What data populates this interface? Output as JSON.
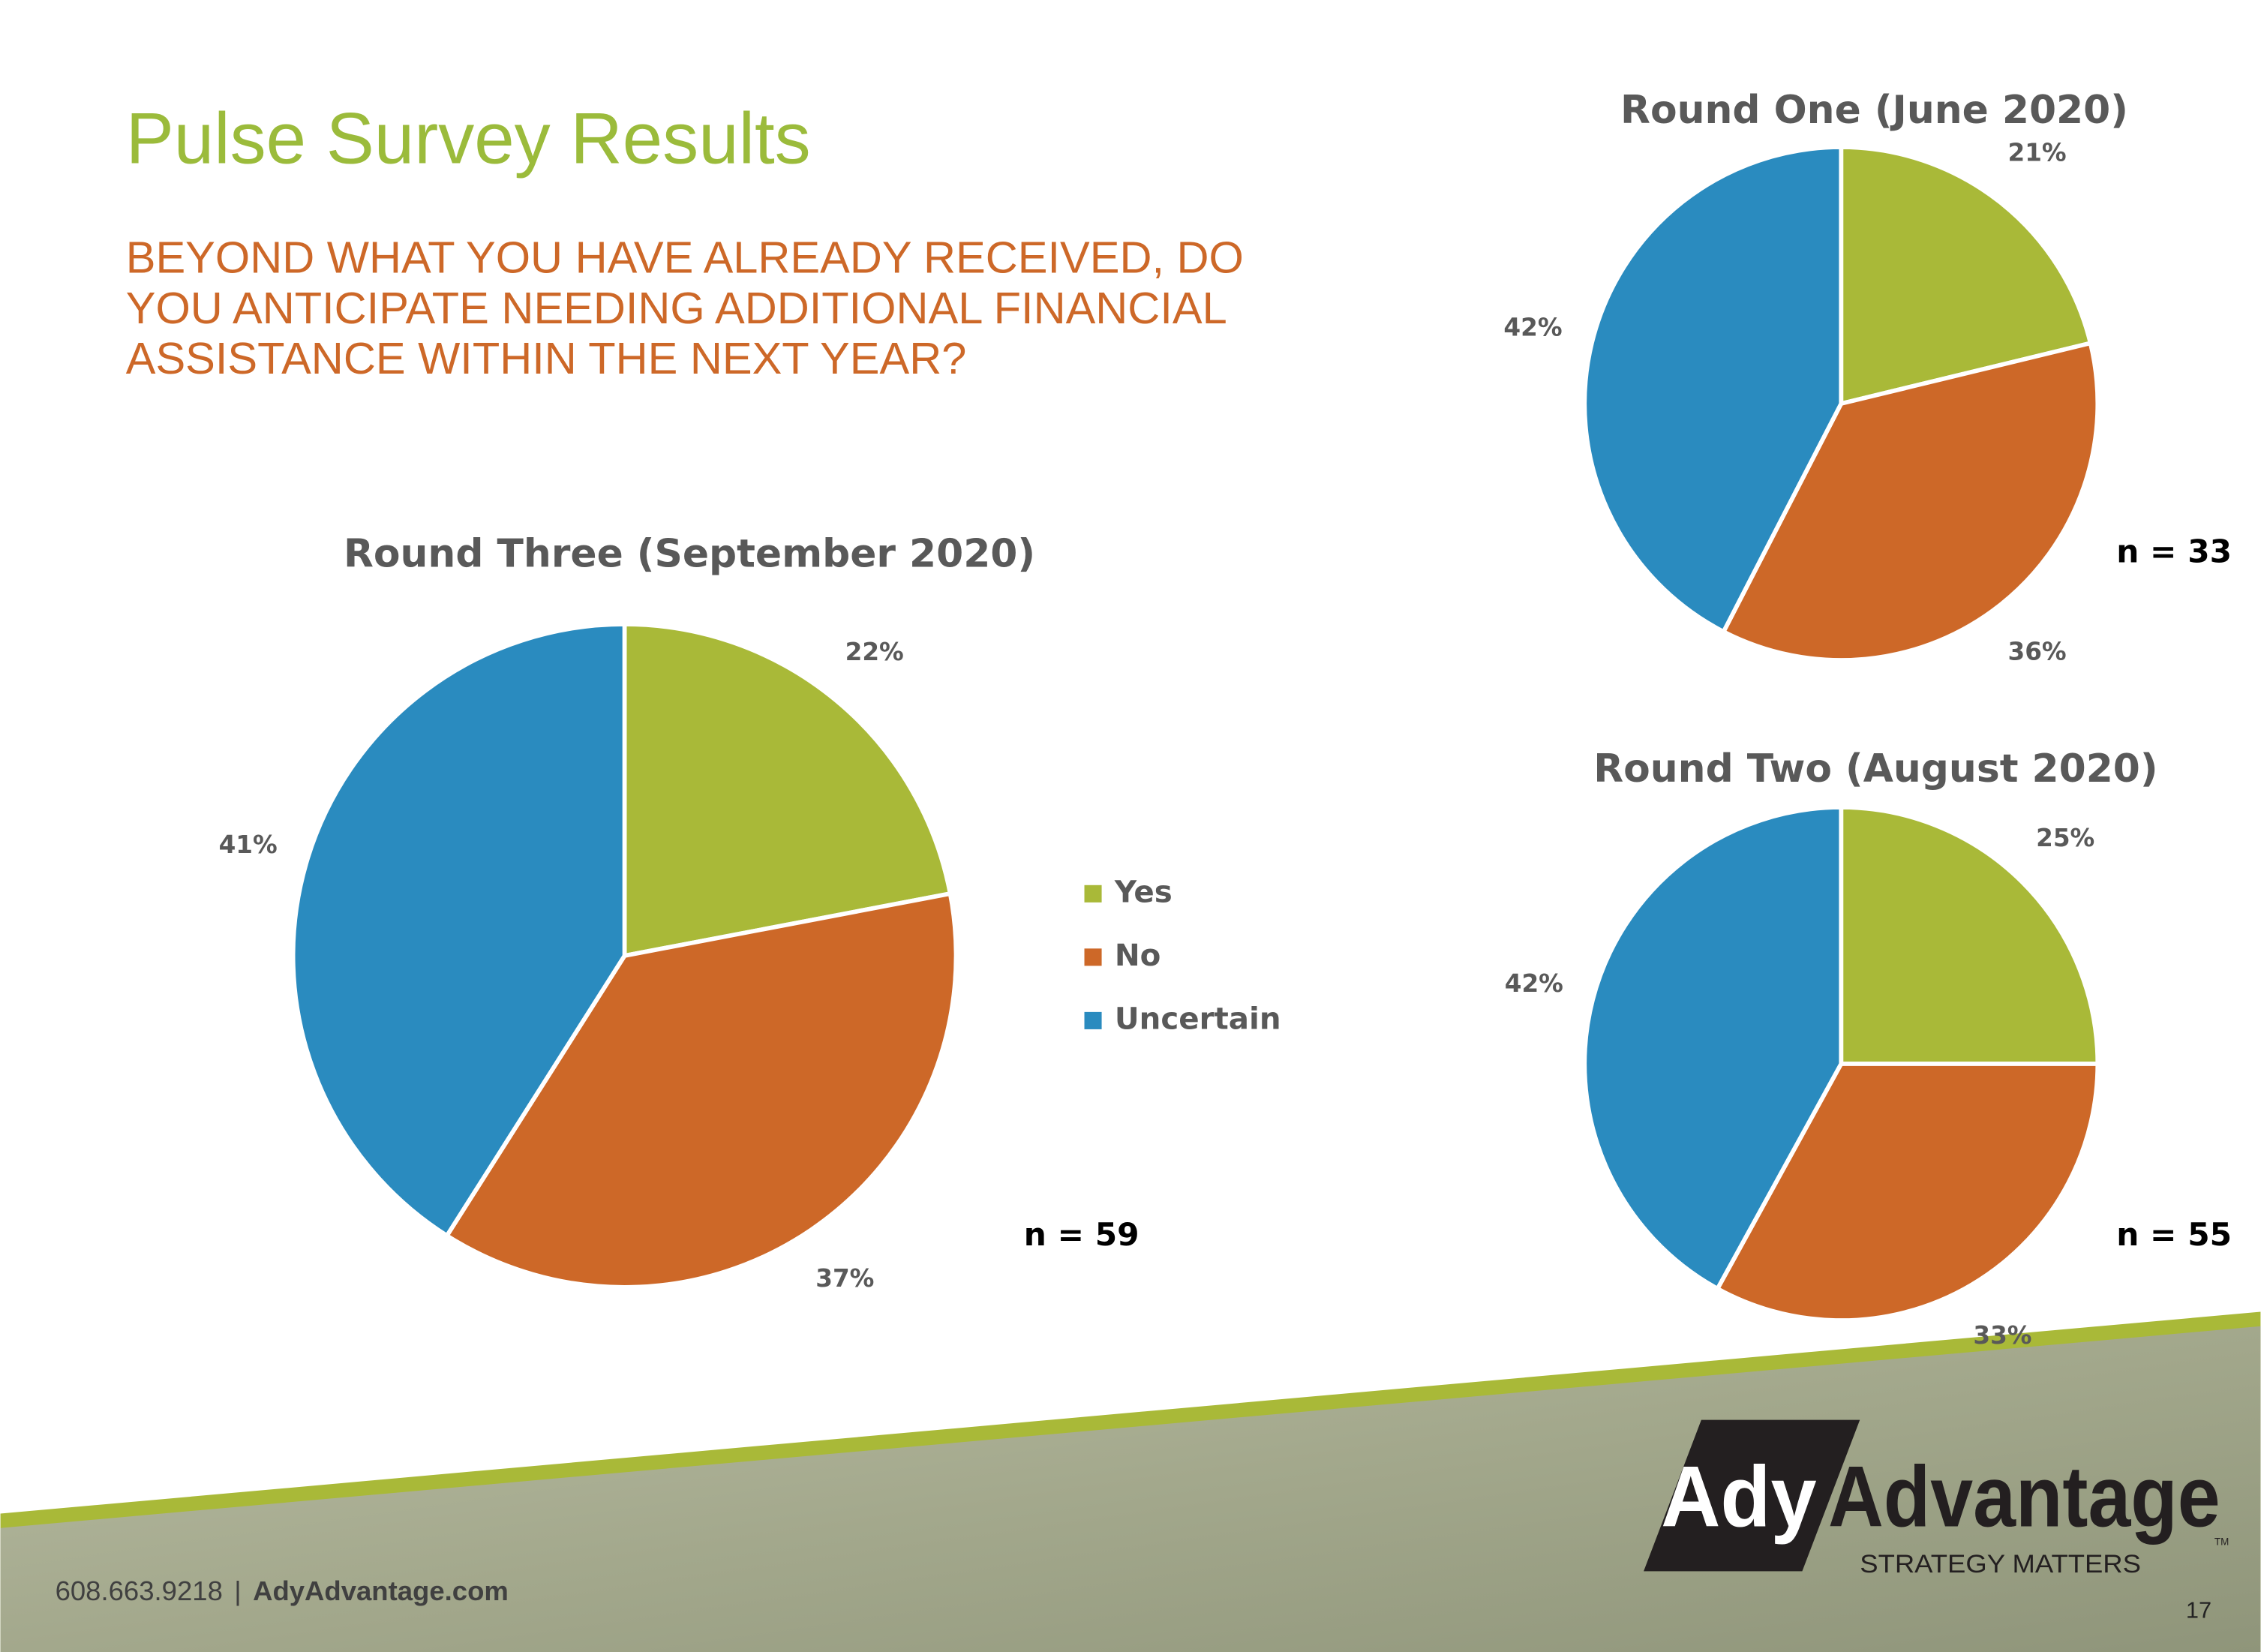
{
  "header": {
    "title": "Pulse Survey Results",
    "question": [
      "BEYOND WHAT YOU HAVE ALREADY RECEIVED, DO",
      "YOU ANTICIPATE NEEDING ADDITIONAL FINANCIAL",
      "ASSISTANCE WITHIN THE NEXT YEAR?"
    ]
  },
  "chart_data": [
    {
      "type": "pie",
      "title": "Round Three (September 2020)",
      "categories": [
        "Yes",
        "No",
        "Uncertain"
      ],
      "values": [
        22,
        37,
        41
      ],
      "value_labels": [
        "22%",
        "37%",
        "41%"
      ],
      "colors": [
        "#a9b938",
        "#cd6828",
        "#2a8bbf"
      ],
      "note": "n = 59",
      "legend": "right"
    },
    {
      "type": "pie",
      "title": "Round One (June 2020)",
      "values": [
        21,
        36,
        42
      ],
      "value_labels": [
        "21%",
        "36%",
        "42%"
      ],
      "colors": [
        "#a9b938",
        "#cd6828",
        "#2a8bbf"
      ],
      "note": "n = 33"
    },
    {
      "type": "pie",
      "title": "Round Two (August 2020)",
      "values": [
        25,
        33,
        42
      ],
      "value_labels": [
        "25%",
        "33%",
        "42%"
      ],
      "colors": [
        "#a9b938",
        "#cd6828",
        "#2a8bbf"
      ],
      "note": "n = 55"
    }
  ],
  "footer": {
    "phone": "608.663.9218",
    "separator": "|",
    "website": "AdyAdvantage.com",
    "page_number": "17"
  },
  "logo": {
    "part1": "Ady",
    "part2": "Advantage",
    "trademark": "TM",
    "tagline": "STRATEGY MATTERS"
  }
}
